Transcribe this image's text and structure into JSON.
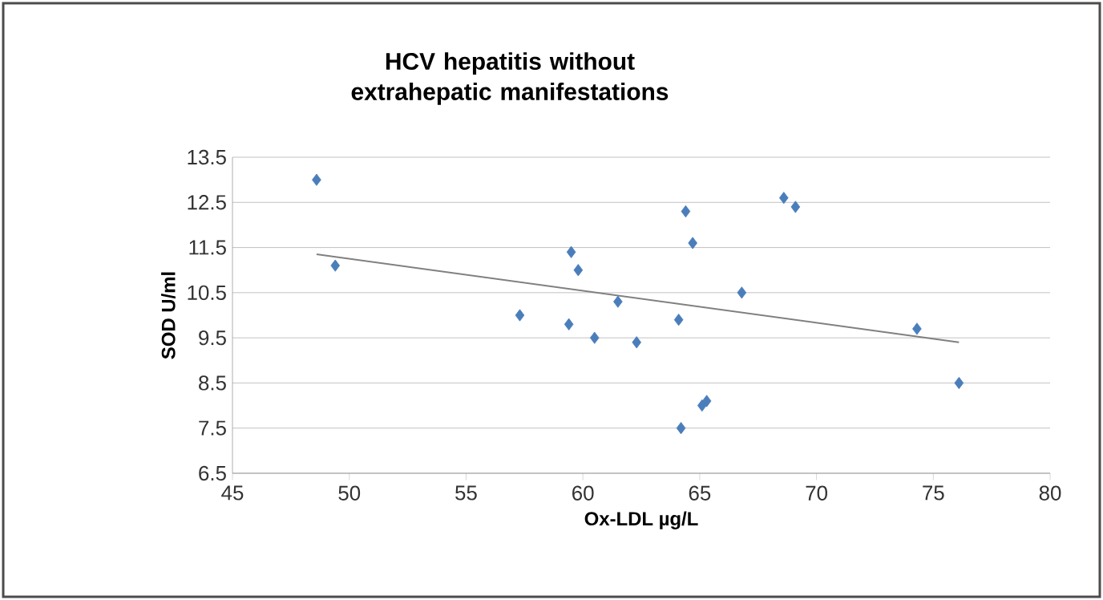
{
  "chart_data": {
    "type": "scatter",
    "title": "HCV hepatitis without extrahepatic manifestations",
    "xlabel": "Ox-LDL µg/L",
    "ylabel": "SOD U/ml",
    "xlim": [
      45,
      80
    ],
    "xticks": [
      45,
      50,
      55,
      60,
      65,
      70,
      75,
      80
    ],
    "ylim": [
      6.5,
      13.5
    ],
    "yticks": [
      6.5,
      7.5,
      8.5,
      9.5,
      10.5,
      11.5,
      12.5,
      13.5
    ],
    "grid": "y",
    "series": [
      {
        "marker": "diamond",
        "color": "#4a7ebb",
        "x": [
          48.6,
          49.4,
          57.3,
          59.4,
          59.5,
          59.8,
          60.5,
          61.5,
          62.3,
          64.1,
          64.2,
          64.4,
          64.7,
          65.1,
          65.3,
          66.8,
          68.6,
          69.1,
          74.3,
          76.1
        ],
        "values": [
          13.0,
          11.1,
          10.0,
          9.8,
          11.4,
          11.0,
          9.5,
          10.3,
          9.4,
          9.9,
          7.5,
          12.3,
          11.6,
          8.0,
          8.1,
          10.5,
          12.6,
          12.4,
          9.7,
          8.5
        ]
      },
      {
        "type": "line",
        "marker": "none",
        "color": "#808080",
        "x": [
          48.6,
          76.1
        ],
        "values": [
          11.35,
          9.4
        ]
      }
    ]
  }
}
